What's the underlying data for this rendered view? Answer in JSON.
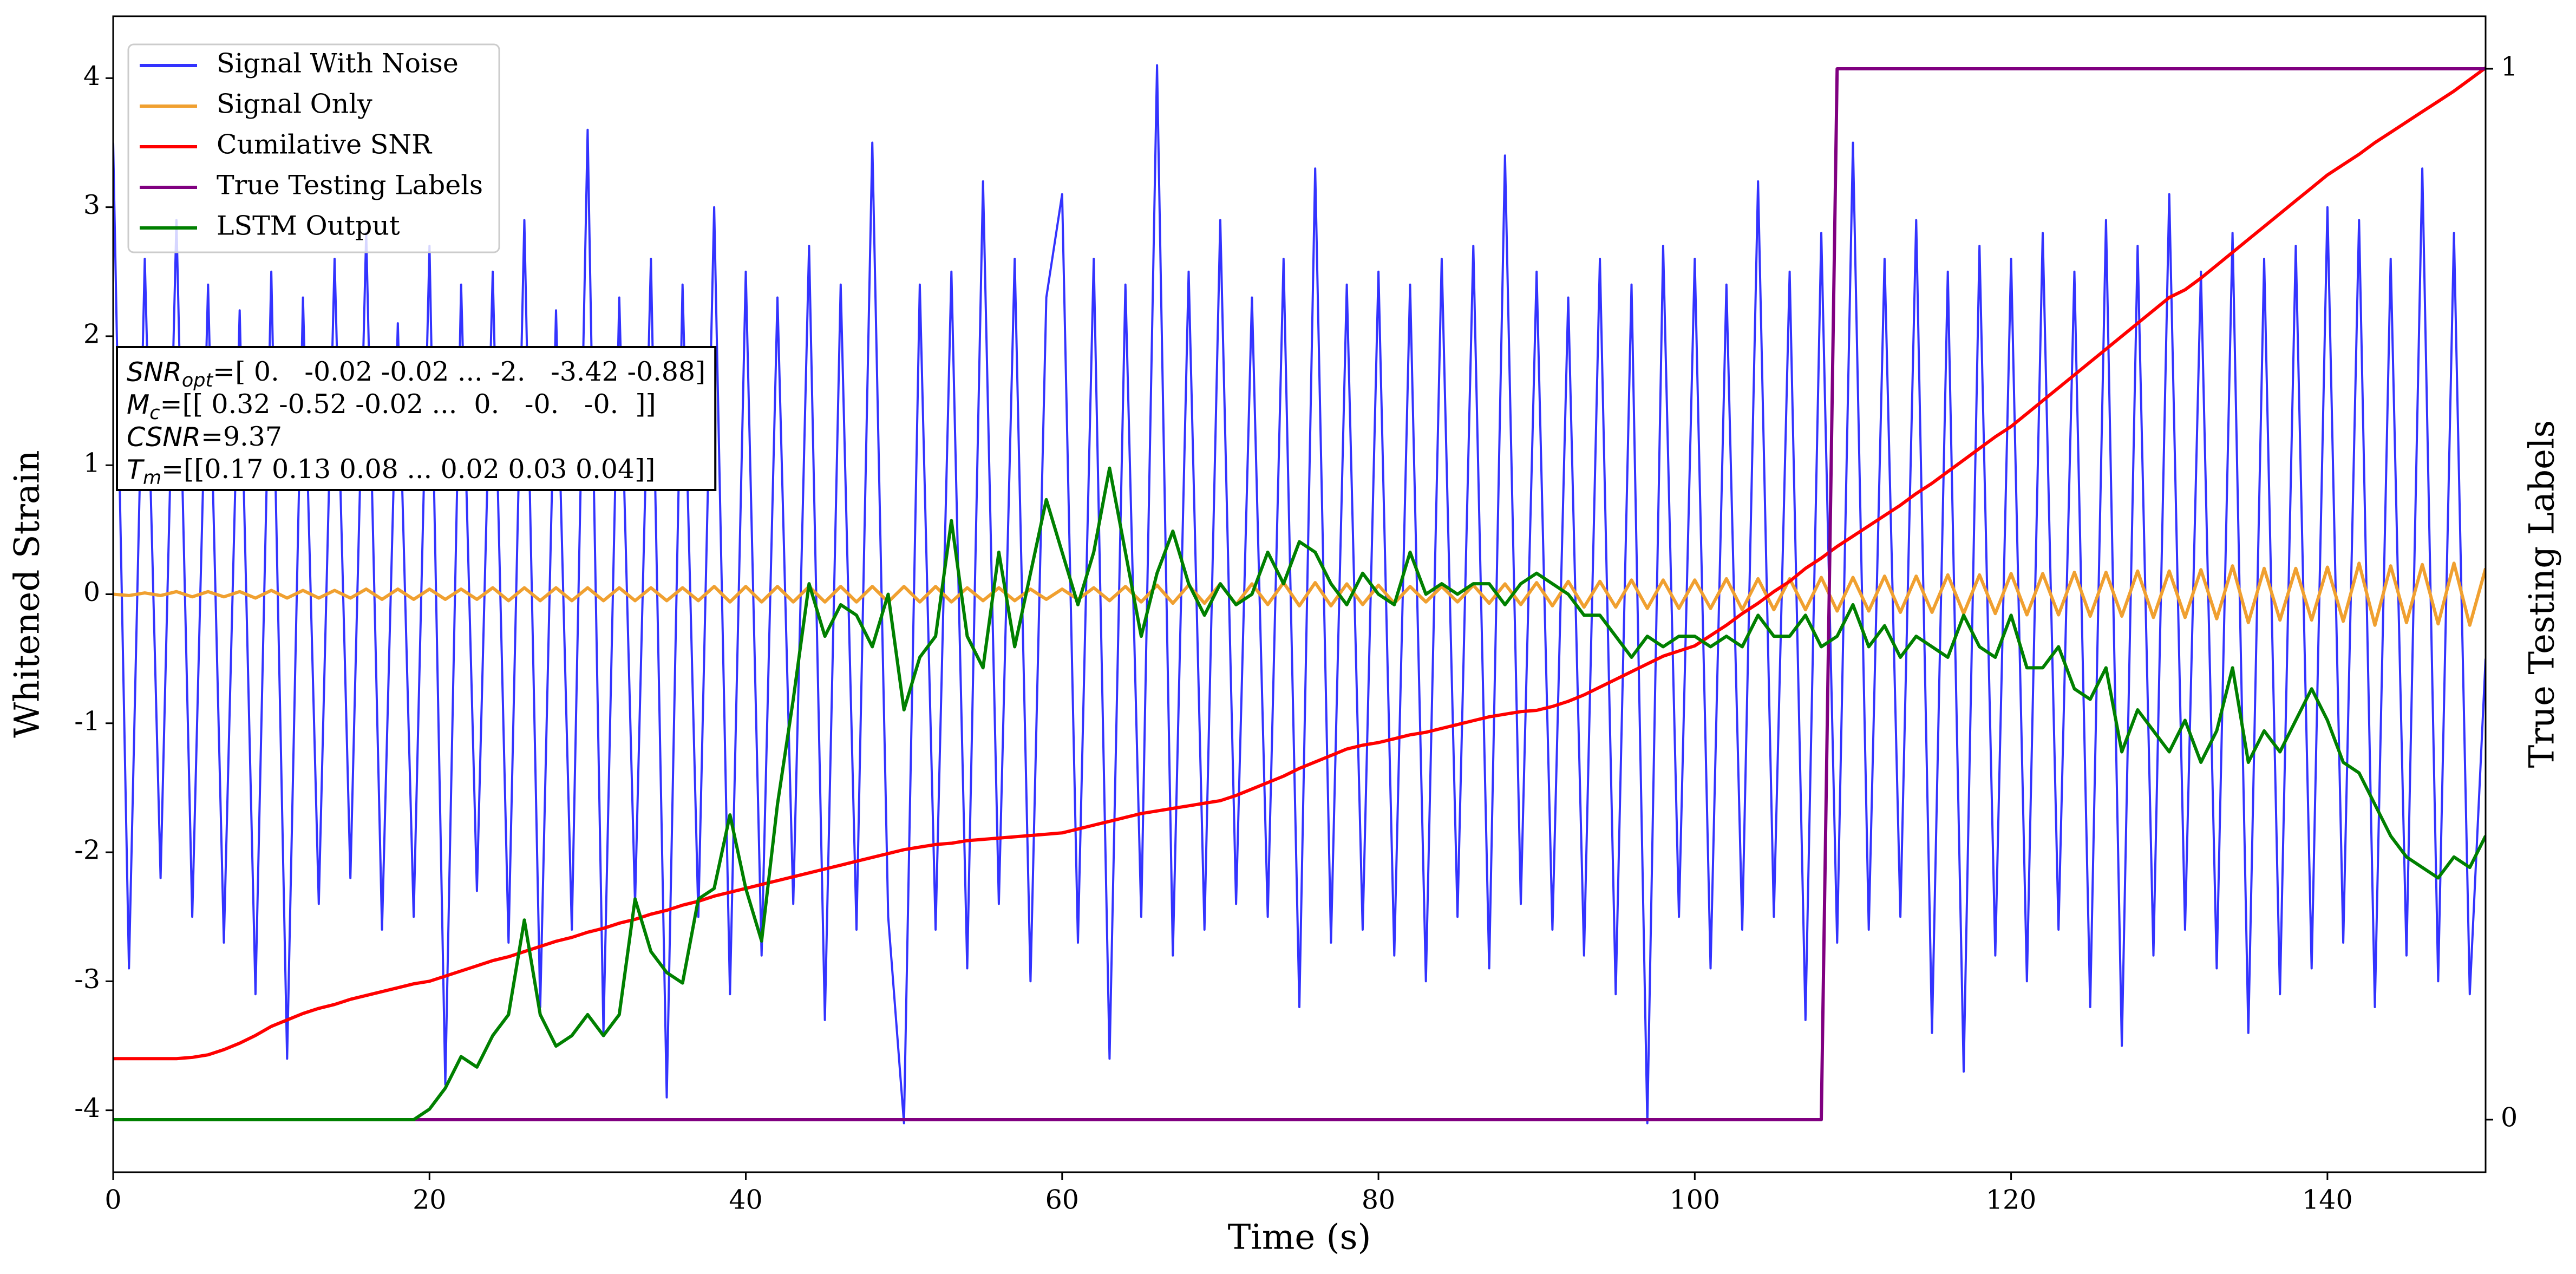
{
  "chart_data": {
    "type": "line",
    "xlabel": "Time (s)",
    "ylabel": "Whitened Strain",
    "y2label": "True Testing Labels",
    "xlim": [
      0,
      150
    ],
    "ylim": [
      -4.48,
      4.48
    ],
    "y2lim": [
      -0.05,
      1.05
    ],
    "xticks": [
      0,
      20,
      40,
      60,
      80,
      100,
      120,
      140
    ],
    "yticks": [
      -4,
      -3,
      -2,
      -1,
      0,
      1,
      2,
      3,
      4
    ],
    "y2ticks": [
      0,
      1
    ],
    "legend": "upper left",
    "x": [
      0,
      1,
      2,
      3,
      4,
      5,
      6,
      7,
      8,
      9,
      10,
      11,
      12,
      13,
      14,
      15,
      16,
      17,
      18,
      19,
      20,
      21,
      22,
      23,
      24,
      25,
      26,
      27,
      28,
      29,
      30,
      31,
      32,
      33,
      34,
      35,
      36,
      37,
      38,
      39,
      40,
      41,
      42,
      43,
      44,
      45,
      46,
      47,
      48,
      49,
      50,
      51,
      52,
      53,
      54,
      55,
      56,
      57,
      58,
      59,
      60,
      61,
      62,
      63,
      64,
      65,
      66,
      67,
      68,
      69,
      70,
      71,
      72,
      73,
      74,
      75,
      76,
      77,
      78,
      79,
      80,
      81,
      82,
      83,
      84,
      85,
      86,
      87,
      88,
      89,
      90,
      91,
      92,
      93,
      94,
      95,
      96,
      97,
      98,
      99,
      100,
      101,
      102,
      103,
      104,
      105,
      106,
      107,
      108,
      109,
      110,
      111,
      112,
      113,
      114,
      115,
      116,
      117,
      118,
      119,
      120,
      121,
      122,
      123,
      124,
      125,
      126,
      127,
      128,
      129,
      130,
      131,
      132,
      133,
      134,
      135,
      136,
      137,
      138,
      139,
      140,
      141,
      142,
      143,
      144,
      145,
      146,
      147,
      148,
      149,
      150
    ],
    "series": [
      {
        "name": "Signal With Noise",
        "color": "#3333ff",
        "values": [
          3.5,
          -2.9,
          2.6,
          -2.2,
          2.9,
          -2.5,
          2.4,
          -2.7,
          2.2,
          -3.1,
          2.5,
          -3.6,
          2.3,
          -2.4,
          2.6,
          -2.2,
          2.8,
          -2.6,
          2.1,
          -2.5,
          2.7,
          -3.8,
          2.4,
          -2.3,
          2.5,
          -2.7,
          2.9,
          -3.2,
          2.2,
          -2.6,
          3.6,
          -3.4,
          2.3,
          -2.4,
          2.6,
          -3.9,
          2.4,
          -2.5,
          3.0,
          -3.1,
          2.5,
          -2.8,
          2.3,
          -2.4,
          2.7,
          -3.3,
          2.4,
          -2.6,
          3.5,
          -2.5,
          -4.1,
          2.4,
          -2.6,
          2.5,
          -2.9,
          3.2,
          -2.4,
          2.6,
          -3.0,
          2.3,
          3.1,
          -2.7,
          2.6,
          -3.6,
          2.4,
          -2.5,
          4.1,
          -2.8,
          2.5,
          -2.6,
          2.9,
          -2.4,
          2.3,
          -2.5,
          2.6,
          -3.2,
          3.3,
          -2.7,
          2.4,
          -2.6,
          2.5,
          -2.8,
          2.4,
          -3.0,
          2.6,
          -2.5,
          2.7,
          -2.9,
          3.4,
          -2.4,
          2.5,
          -2.6,
          2.3,
          -2.8,
          2.6,
          -3.1,
          2.4,
          -4.1,
          2.7,
          -2.5,
          2.6,
          -2.9,
          2.4,
          -2.6,
          3.2,
          -2.5,
          2.5,
          -3.3,
          2.8,
          -2.7,
          3.5,
          -2.6,
          2.6,
          -2.5,
          2.9,
          -3.4,
          2.5,
          -3.7,
          2.7,
          -2.8,
          2.6,
          -3.0,
          2.8,
          -2.6,
          2.5,
          -3.2,
          2.9,
          -3.5,
          2.7,
          -2.8,
          3.1,
          -2.6,
          2.5,
          -2.9,
          2.8,
          -3.4,
          2.6,
          -3.1,
          2.7,
          -2.9,
          3.0,
          -2.7,
          2.9,
          -3.2,
          2.6,
          -2.8,
          3.3,
          -3.0,
          2.8,
          -3.1,
          -0.5
        ]
      },
      {
        "name": "Signal Only",
        "color": "#f0a030",
        "values": [
          0,
          -0.01,
          0.01,
          -0.01,
          0.02,
          -0.02,
          0.02,
          -0.02,
          0.02,
          -0.03,
          0.03,
          -0.03,
          0.03,
          -0.03,
          0.03,
          -0.03,
          0.04,
          -0.04,
          0.04,
          -0.04,
          0.04,
          -0.04,
          0.04,
          -0.04,
          0.05,
          -0.05,
          0.05,
          -0.05,
          0.05,
          -0.05,
          0.05,
          -0.05,
          0.05,
          -0.05,
          0.05,
          -0.05,
          0.05,
          -0.05,
          0.06,
          -0.06,
          0.06,
          -0.06,
          0.06,
          -0.06,
          0.06,
          -0.06,
          0.06,
          -0.06,
          0.06,
          -0.06,
          0.06,
          -0.06,
          0.06,
          -0.06,
          0.05,
          -0.05,
          0.05,
          -0.05,
          0.04,
          -0.04,
          0.04,
          -0.04,
          0.05,
          -0.05,
          0.06,
          -0.06,
          0.07,
          -0.07,
          0.07,
          -0.07,
          0.08,
          -0.08,
          0.08,
          -0.08,
          0.09,
          -0.09,
          0.09,
          -0.09,
          0.08,
          -0.08,
          0.07,
          -0.07,
          0.06,
          -0.06,
          0.06,
          -0.06,
          0.07,
          -0.07,
          0.08,
          -0.08,
          0.09,
          -0.09,
          0.1,
          -0.1,
          0.1,
          -0.1,
          0.11,
          -0.11,
          0.11,
          -0.11,
          0.11,
          -0.11,
          0.12,
          -0.12,
          0.12,
          -0.12,
          0.12,
          -0.12,
          0.13,
          -0.13,
          0.13,
          -0.13,
          0.14,
          -0.14,
          0.14,
          -0.14,
          0.15,
          -0.15,
          0.15,
          -0.15,
          0.16,
          -0.16,
          0.16,
          -0.16,
          0.17,
          -0.17,
          0.17,
          -0.17,
          0.18,
          -0.18,
          0.18,
          -0.18,
          0.19,
          -0.19,
          0.22,
          -0.22,
          0.2,
          -0.2,
          0.2,
          -0.2,
          0.21,
          -0.21,
          0.24,
          -0.24,
          0.22,
          -0.22,
          0.23,
          -0.23,
          0.24,
          -0.24,
          0.2
        ]
      },
      {
        "name": "Cumilative SNR",
        "color": "#ff0000",
        "values": [
          -3.6,
          -3.6,
          -3.6,
          -3.6,
          -3.6,
          -3.59,
          -3.57,
          -3.53,
          -3.48,
          -3.42,
          -3.35,
          -3.3,
          -3.25,
          -3.21,
          -3.18,
          -3.14,
          -3.11,
          -3.08,
          -3.05,
          -3.02,
          -3.0,
          -2.96,
          -2.92,
          -2.88,
          -2.84,
          -2.81,
          -2.77,
          -2.73,
          -2.69,
          -2.66,
          -2.62,
          -2.59,
          -2.55,
          -2.52,
          -2.48,
          -2.45,
          -2.41,
          -2.38,
          -2.34,
          -2.31,
          -2.28,
          -2.25,
          -2.22,
          -2.19,
          -2.16,
          -2.13,
          -2.1,
          -2.07,
          -2.04,
          -2.01,
          -1.98,
          -1.96,
          -1.94,
          -1.93,
          -1.91,
          -1.9,
          -1.89,
          -1.88,
          -1.87,
          -1.86,
          -1.85,
          -1.82,
          -1.79,
          -1.76,
          -1.73,
          -1.7,
          -1.68,
          -1.66,
          -1.64,
          -1.62,
          -1.6,
          -1.56,
          -1.51,
          -1.46,
          -1.41,
          -1.35,
          -1.3,
          -1.25,
          -1.2,
          -1.17,
          -1.15,
          -1.12,
          -1.09,
          -1.07,
          -1.04,
          -1.01,
          -0.98,
          -0.95,
          -0.93,
          -0.91,
          -0.9,
          -0.87,
          -0.83,
          -0.78,
          -0.72,
          -0.66,
          -0.6,
          -0.54,
          -0.48,
          -0.44,
          -0.4,
          -0.32,
          -0.24,
          -0.15,
          -0.07,
          0.02,
          0.1,
          0.2,
          0.28,
          0.37,
          0.45,
          0.53,
          0.61,
          0.69,
          0.78,
          0.86,
          0.95,
          1.04,
          1.13,
          1.22,
          1.3,
          1.4,
          1.5,
          1.6,
          1.7,
          1.8,
          1.9,
          2.0,
          2.1,
          2.2,
          2.3,
          2.36,
          2.45,
          2.55,
          2.65,
          2.75,
          2.85,
          2.95,
          3.05,
          3.15,
          3.25,
          3.33,
          3.41,
          3.5,
          3.58,
          3.66,
          3.74,
          3.82,
          3.9,
          3.99,
          4.08
        ]
      },
      {
        "name": "True Testing Labels",
        "color": "#800080",
        "axis": "y2",
        "values": [
          0,
          0,
          0,
          0,
          0,
          0,
          0,
          0,
          0,
          0,
          0,
          0,
          0,
          0,
          0,
          0,
          0,
          0,
          0,
          0,
          0,
          0,
          0,
          0,
          0,
          0,
          0,
          0,
          0,
          0,
          0,
          0,
          0,
          0,
          0,
          0,
          0,
          0,
          0,
          0,
          0,
          0,
          0,
          0,
          0,
          0,
          0,
          0,
          0,
          0,
          0,
          0,
          0,
          0,
          0,
          0,
          0,
          0,
          0,
          0,
          0,
          0,
          0,
          0,
          0,
          0,
          0,
          0,
          0,
          0,
          0,
          0,
          0,
          0,
          0,
          0,
          0,
          0,
          0,
          0,
          0,
          0,
          0,
          0,
          0,
          0,
          0,
          0,
          0,
          0,
          0,
          0,
          0,
          0,
          0,
          0,
          0,
          0,
          0,
          0,
          0,
          0,
          0,
          0,
          0,
          0,
          0,
          0,
          0,
          1,
          1,
          1,
          1,
          1,
          1,
          1,
          1,
          1,
          1,
          1,
          1,
          1,
          1,
          1,
          1,
          1,
          1,
          1,
          1,
          1,
          1,
          1,
          1,
          1,
          1,
          1,
          1,
          1,
          1,
          1,
          1,
          1,
          1,
          1,
          1,
          1,
          1,
          1,
          1,
          1,
          1
        ]
      },
      {
        "name": "LSTM Output",
        "color": "#008000",
        "axis": "y2",
        "values": [
          0,
          0,
          0,
          0,
          0,
          0,
          0,
          0,
          0,
          0,
          0,
          0,
          0,
          0,
          0,
          0,
          0,
          0,
          0,
          0,
          0.01,
          0.03,
          0.06,
          0.05,
          0.08,
          0.1,
          0.19,
          0.1,
          0.07,
          0.08,
          0.1,
          0.08,
          0.1,
          0.21,
          0.16,
          0.14,
          0.13,
          0.21,
          0.22,
          0.29,
          0.22,
          0.17,
          0.3,
          0.4,
          0.51,
          0.46,
          0.49,
          0.48,
          0.45,
          0.5,
          0.39,
          0.44,
          0.46,
          0.57,
          0.46,
          0.43,
          0.54,
          0.45,
          0.52,
          0.59,
          0.54,
          0.49,
          0.54,
          0.62,
          0.54,
          0.46,
          0.52,
          0.56,
          0.51,
          0.48,
          0.51,
          0.49,
          0.5,
          0.54,
          0.51,
          0.55,
          0.54,
          0.51,
          0.49,
          0.52,
          0.5,
          0.49,
          0.54,
          0.5,
          0.51,
          0.5,
          0.51,
          0.51,
          0.49,
          0.51,
          0.52,
          0.51,
          0.5,
          0.48,
          0.48,
          0.46,
          0.44,
          0.46,
          0.45,
          0.46,
          0.46,
          0.45,
          0.46,
          0.45,
          0.48,
          0.46,
          0.46,
          0.48,
          0.45,
          0.46,
          0.49,
          0.45,
          0.47,
          0.44,
          0.46,
          0.45,
          0.44,
          0.48,
          0.45,
          0.44,
          0.48,
          0.43,
          0.43,
          0.45,
          0.41,
          0.4,
          0.43,
          0.35,
          0.39,
          0.37,
          0.35,
          0.38,
          0.34,
          0.37,
          0.43,
          0.34,
          0.37,
          0.35,
          0.38,
          0.41,
          0.38,
          0.34,
          0.33,
          0.3,
          0.27,
          0.25,
          0.24,
          0.23,
          0.25,
          0.24,
          0.27
        ]
      }
    ],
    "annotation": [
      {
        "name": "SNR",
        "sub": "opt",
        "text": "=[ 0.   -0.02 -0.02 ... -2.   -3.42 -0.88]"
      },
      {
        "name": "M",
        "sub": "c",
        "text": "=[[ 0.32 -0.52 -0.02 ...  0.   -0.   -0.  ]]"
      },
      {
        "name": "CSNR",
        "text": "=9.37"
      },
      {
        "name": "T",
        "sub": "m",
        "text": "=[[0.17 0.13 0.08 ... 0.02 0.03 0.04]]"
      }
    ]
  }
}
